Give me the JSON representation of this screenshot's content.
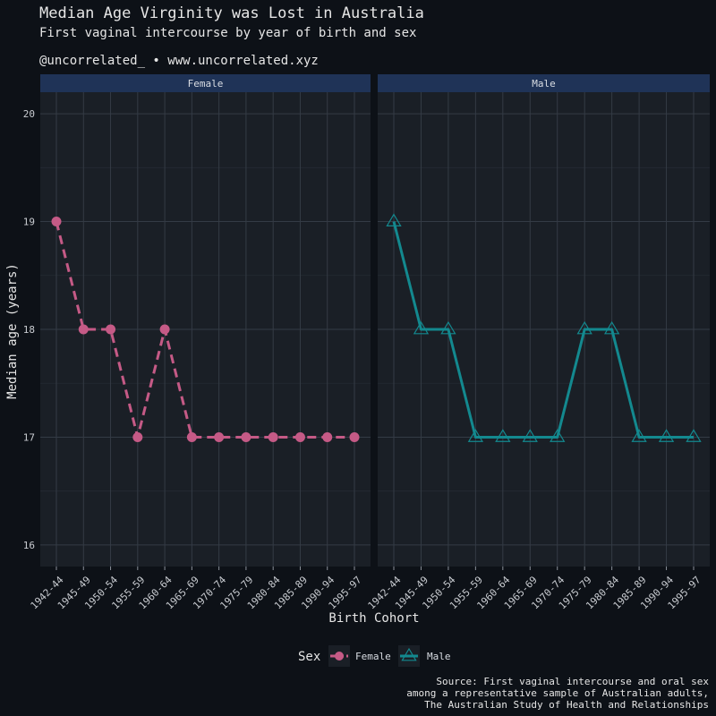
{
  "chart_data": {
    "type": "line",
    "title": "Median Age Virginity was Lost in Australia",
    "subtitle": "First vaginal intercourse by year of birth and sex",
    "tagline": "@uncorrelated_ • www.uncorrelated.xyz",
    "xlabel": "Birth Cohort",
    "ylabel": "Median age (years)",
    "ylim": [
      15.8,
      20.2
    ],
    "yticks": [
      16,
      17,
      18,
      19,
      20
    ],
    "grid": true,
    "categories": [
      "1942-44",
      "1945-49",
      "1950-54",
      "1955-59",
      "1960-64",
      "1965-69",
      "1970-74",
      "1975-79",
      "1980-84",
      "1985-89",
      "1990-94",
      "1995-97"
    ],
    "panels": [
      "Female",
      "Male"
    ],
    "series": [
      {
        "name": "Female",
        "color": "#c55a86",
        "line_style": "dashed",
        "marker": "circle",
        "values": [
          19,
          18,
          18,
          17,
          18,
          17,
          17,
          17,
          17,
          17,
          17,
          17
        ]
      },
      {
        "name": "Male",
        "color": "#13898f",
        "line_style": "solid",
        "marker": "triangle-open",
        "values": [
          19,
          18,
          18,
          17,
          17,
          17,
          17,
          18,
          18,
          17,
          17,
          17
        ]
      }
    ],
    "legend": {
      "title": "Sex",
      "position": "bottom",
      "entries": [
        "Female",
        "Male"
      ]
    },
    "caption": [
      "Source: First vaginal intercourse and oral sex",
      "among a representative sample of Australian adults,",
      "The Australian Study of Health and Relationships"
    ]
  },
  "colors": {
    "background": "#0d1117",
    "panel": "#1a1f26",
    "strip": "#1f3357",
    "grid": "#343b45"
  }
}
